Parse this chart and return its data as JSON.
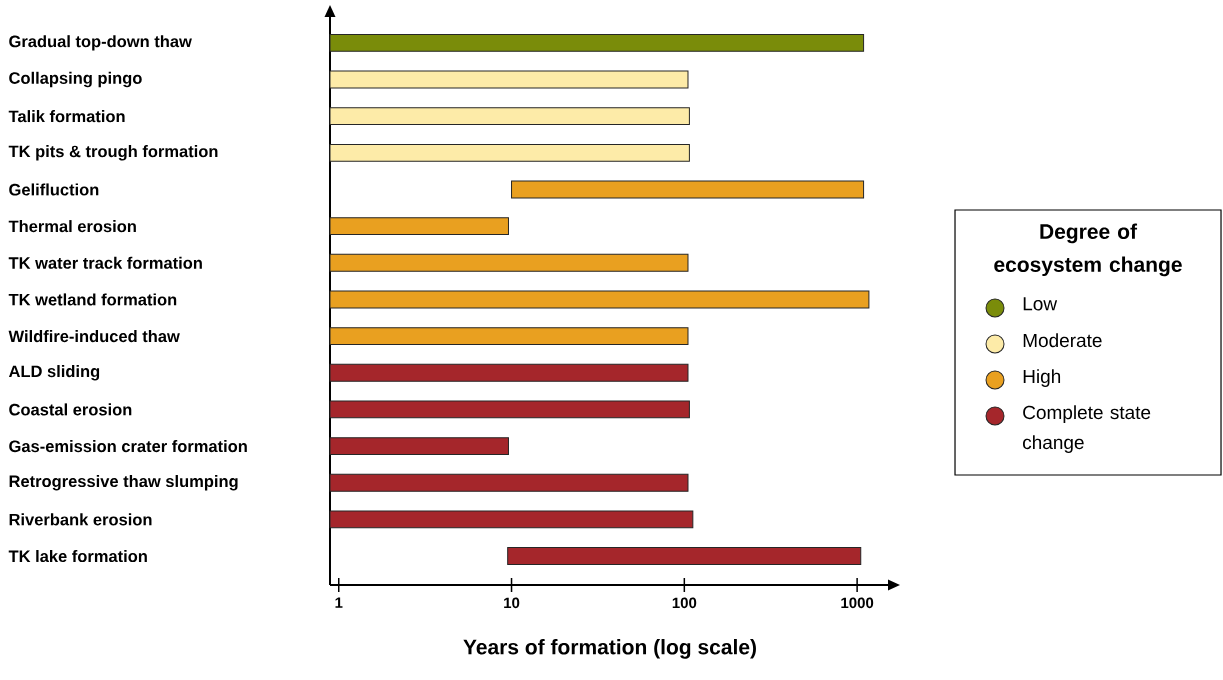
{
  "chart_data": {
    "type": "bar",
    "orientation": "horizontal",
    "log": "x",
    "xlabel": "Years of formation (log scale)",
    "legend_title": "Degree of ecosystem change",
    "legend": "right",
    "xlim": [
      0.89,
      1550
    ],
    "xticks": [
      1,
      10,
      100,
      1000
    ],
    "categories": [
      "Gradual top-down thaw",
      "Collapsing pingo",
      "Talik formation",
      "TK pits & trough formation",
      "Gelifluction",
      "Thermal erosion",
      "TK water track formation",
      "TK wetland formation",
      "Wildfire-induced thaw",
      "ALD sliding",
      "Coastal erosion",
      "Gas-emission crater formation",
      "Retrogressive thaw slumping",
      "Riverbank erosion",
      "TK lake formation"
    ],
    "series": [
      {
        "name": "Low",
        "color": "#7a8c0a",
        "values": [
          1090,
          null,
          null,
          null,
          null,
          null,
          null,
          null,
          null,
          null,
          null,
          null,
          null,
          null,
          null
        ]
      },
      {
        "name": "Moderate",
        "color": "#fdeba8",
        "values": [
          null,
          105,
          107,
          107,
          null,
          null,
          null,
          null,
          null,
          null,
          null,
          null,
          null,
          null,
          null
        ]
      },
      {
        "name": "High",
        "color": "#e9a020",
        "base": [
          null,
          null,
          null,
          null,
          10,
          null,
          null,
          null,
          null,
          null,
          null,
          null,
          null,
          null,
          null
        ],
        "values": [
          null,
          null,
          null,
          null,
          1080,
          9.6,
          105,
          1170,
          105,
          null,
          null,
          null,
          null,
          null,
          null
        ]
      },
      {
        "name": "Complete state change",
        "color": "#a5262b",
        "base": [
          null,
          null,
          null,
          null,
          null,
          null,
          null,
          null,
          null,
          null,
          null,
          null,
          null,
          null,
          9.5
        ],
        "values": [
          null,
          null,
          null,
          null,
          null,
          null,
          null,
          null,
          null,
          105,
          107,
          9.6,
          105,
          112,
          1040
        ]
      }
    ]
  }
}
